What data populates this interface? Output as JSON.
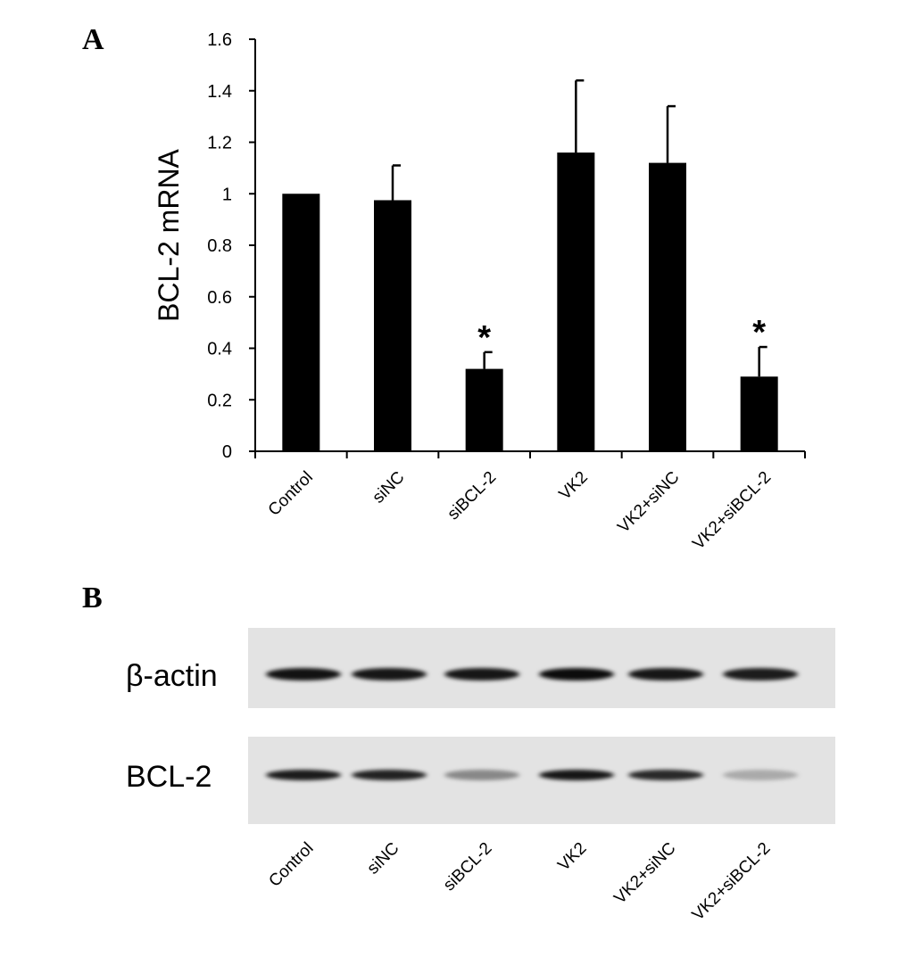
{
  "figure": {
    "panel_a_letter": "A",
    "panel_b_letter": "B"
  },
  "chart_data": {
    "type": "bar",
    "title": "",
    "xlabel": "",
    "ylabel": "BCL-2 mRNA",
    "ylim": [
      0,
      1.6
    ],
    "yticks": [
      0,
      0.2,
      0.4,
      0.6,
      0.8,
      1,
      1.2,
      1.4,
      1.6
    ],
    "ytick_labels": [
      "0",
      "0.2",
      "0.4",
      "0.6",
      "0.8",
      "1",
      "1.2",
      "1.4",
      "1.6"
    ],
    "grid": false,
    "legend": "none",
    "categories": [
      "Control",
      "siNC",
      "siBCL-2",
      "VK2",
      "VK2+siNC",
      "VK2+siBCL-2"
    ],
    "values": [
      1.0,
      0.975,
      0.32,
      1.16,
      1.12,
      0.29
    ],
    "error_upper": [
      0.0,
      0.135,
      0.065,
      0.28,
      0.22,
      0.115
    ],
    "annotations": [
      "",
      "",
      "*",
      "",
      "",
      "*"
    ],
    "bar_color": "#000000"
  },
  "blot": {
    "rows": [
      {
        "label": "β-actin",
        "intensities": [
          0.92,
          0.9,
          0.9,
          0.95,
          0.9,
          0.88
        ]
      },
      {
        "label": "BCL-2",
        "intensities": [
          0.88,
          0.85,
          0.4,
          0.9,
          0.82,
          0.25
        ]
      }
    ],
    "lane_labels": [
      "Control",
      "siNC",
      "siBCL-2",
      "VK2",
      "VK2+siNC",
      "VK2+siBCL-2"
    ],
    "background": "#e3e3e3"
  }
}
